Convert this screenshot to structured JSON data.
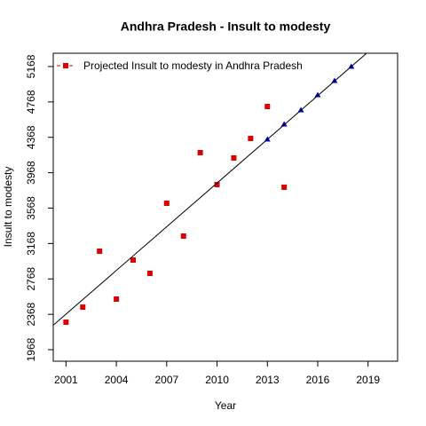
{
  "chart_data": {
    "type": "scatter",
    "title": "Andhra Pradesh  -  Insult to modesty",
    "x_label": "Year",
    "y_label": "Insult to modesty",
    "xlim": [
      2000.24,
      2020.76
    ],
    "ylim": [
      1838,
      5318
    ],
    "xticks": [
      2001,
      2004,
      2007,
      2010,
      2013,
      2016,
      2019
    ],
    "yticks": [
      1968,
      2368,
      2768,
      3168,
      3568,
      3968,
      4368,
      4768,
      5168
    ],
    "legend": {
      "label": "Projected  Insult to modesty  in  Andhra Pradesh",
      "color": "#dd0000",
      "position": "top-left"
    },
    "series": [
      {
        "type": "scatter",
        "marker": "square",
        "color": "#dd0000",
        "x": [
          2001,
          2002,
          2003,
          2004,
          2005,
          2006,
          2007,
          2008,
          2009,
          2010,
          2011,
          2012,
          2013,
          2014
        ],
        "values": [
          2279,
          2449,
          3081,
          2540,
          2981,
          2831,
          3623,
          3252,
          4195,
          3834,
          4135,
          4355,
          4716,
          3804
        ]
      },
      {
        "type": "scatter",
        "marker": "triangle",
        "color": "#0000cc",
        "x": [
          2013,
          2014,
          2015,
          2016,
          2017,
          2018
        ],
        "values": [
          4345,
          4516,
          4676,
          4847,
          5007,
          5168
        ]
      },
      {
        "type": "line",
        "color": "#000000",
        "x": [
          2000.24,
          2020.76
        ],
        "values": [
          2245,
          5622
        ]
      }
    ]
  }
}
